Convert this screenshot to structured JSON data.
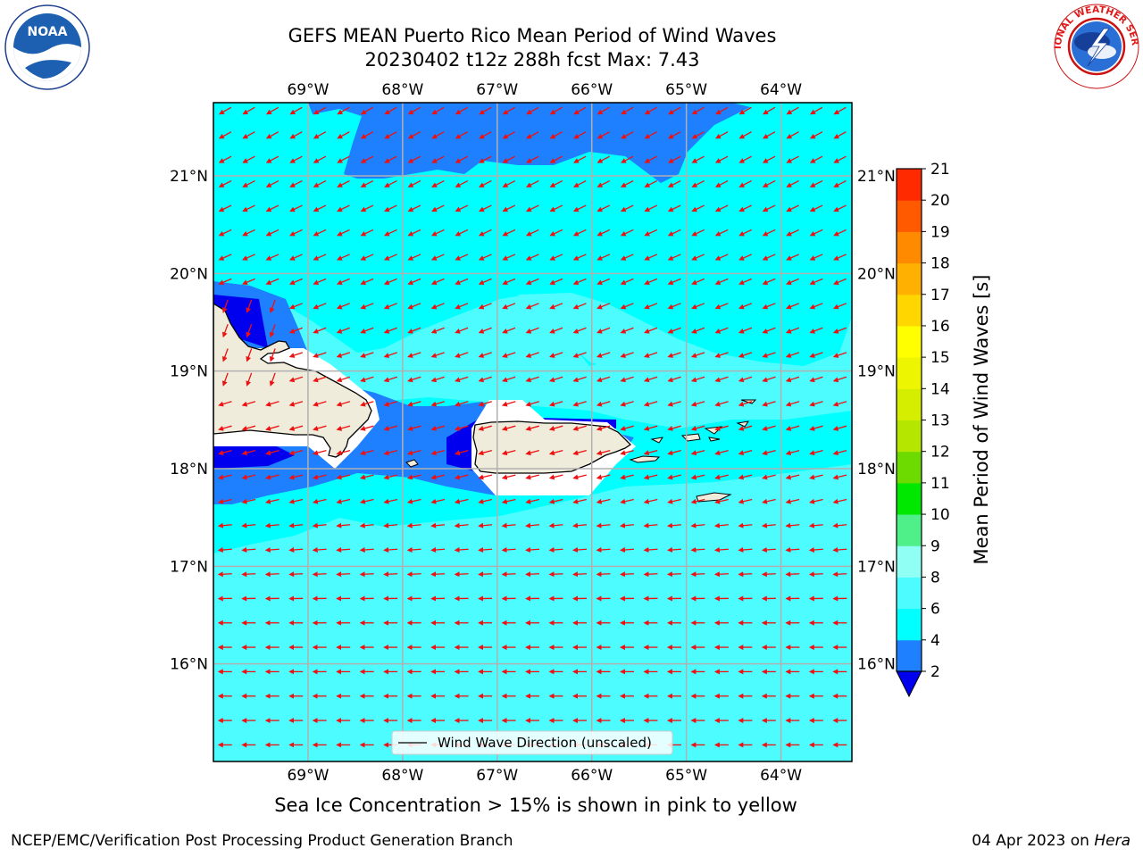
{
  "title": {
    "line1": "GEFS MEAN Puerto Rico Mean Period of Wind Waves",
    "line2": "20230402 t12z 288h fcst   Max: 7.43"
  },
  "logos": {
    "left": {
      "name": "noaa-logo",
      "text": "NOAA"
    },
    "right": {
      "name": "nws-logo",
      "text": "NATIONAL WEATHER SERVICE"
    }
  },
  "map": {
    "lon_range": [
      -70.0,
      -63.25
    ],
    "lat_range": [
      15.0,
      21.75
    ],
    "lon_ticks": [
      {
        "value": -69,
        "label": "69°W"
      },
      {
        "value": -68,
        "label": "68°W"
      },
      {
        "value": -67,
        "label": "67°W"
      },
      {
        "value": -66,
        "label": "66°W"
      },
      {
        "value": -65,
        "label": "65°W"
      },
      {
        "value": -64,
        "label": "64°W"
      }
    ],
    "lat_ticks": [
      {
        "value": 21,
        "label": "21°N"
      },
      {
        "value": 20,
        "label": "20°N"
      },
      {
        "value": 19,
        "label": "19°N"
      },
      {
        "value": 18,
        "label": "18°N"
      },
      {
        "value": 17,
        "label": "17°N"
      },
      {
        "value": 16,
        "label": "16°N"
      }
    ],
    "legend_label": "Wind Wave Direction (unscaled)",
    "colors": {
      "ocean_4_6": "#00ffff",
      "ocean_6_8": "#4dfcff",
      "ocean_2_4": "#1e7fff",
      "ocean_below_2": "#0000ee",
      "land": "#efecdc",
      "arrow": "#ee1111",
      "grid": "#b0b0b0"
    }
  },
  "colorbar": {
    "label": "Mean Period of Wind Waves [s]",
    "ticks": [
      "2",
      "4",
      "6",
      "8",
      "9",
      "10",
      "11",
      "12",
      "13",
      "14",
      "15",
      "16",
      "17",
      "18",
      "19",
      "20",
      "21"
    ],
    "colors": [
      "#1e7fff",
      "#00ffff",
      "#4dfcff",
      "#90fff4",
      "#4ff08a",
      "#00e800",
      "#6ddb00",
      "#b4e600",
      "#d5ee00",
      "#eef500",
      "#ffff00",
      "#ffd600",
      "#ffb000",
      "#ff8a00",
      "#ff5a00",
      "#ff2a00"
    ],
    "under_color": "#0000ee"
  },
  "caption": "Sea Ice Concentration > 15% is shown in pink to yellow",
  "footer": {
    "left": "NCEP/EMC/Verification Post Processing Product Generation Branch",
    "right_date": "04 Apr 2023 on ",
    "right_host": "Hera"
  }
}
